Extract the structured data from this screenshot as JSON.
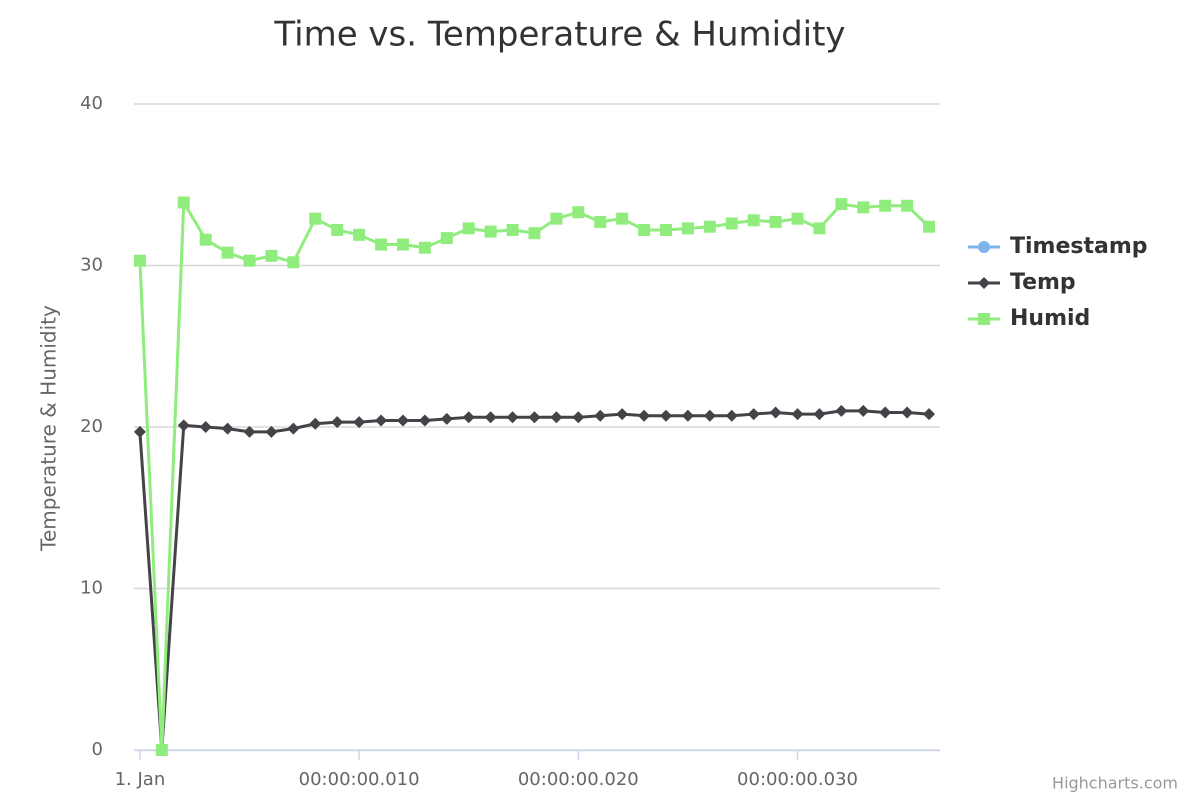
{
  "chart_data": {
    "type": "line",
    "title": "Time vs. Temperature & Humidity",
    "y_label": "Temperature & Humidity",
    "credit": "Highcharts.com",
    "x": [
      0,
      1,
      2,
      3,
      4,
      5,
      6,
      7,
      8,
      9,
      10,
      11,
      12,
      13,
      14,
      15,
      16,
      17,
      18,
      19,
      20,
      21,
      22,
      23,
      24,
      25,
      26,
      27,
      28,
      29,
      30,
      31,
      32,
      33,
      34,
      35,
      36
    ],
    "series": [
      {
        "name": "Timestamp",
        "color": "#7cb5ec",
        "marker": "circle",
        "values": [
          null,
          null,
          null,
          null,
          null,
          null,
          null,
          null,
          null,
          null,
          null,
          null,
          null,
          null,
          null,
          null,
          null,
          null,
          null,
          null,
          null,
          null,
          null,
          null,
          null,
          null,
          null,
          null,
          null,
          null,
          null,
          null,
          null,
          null,
          null,
          null,
          null
        ]
      },
      {
        "name": "Temp",
        "color": "#434348",
        "marker": "diamond",
        "values": [
          19.7,
          0,
          20.1,
          20.0,
          19.9,
          19.7,
          19.7,
          19.9,
          20.2,
          20.3,
          20.3,
          20.4,
          20.4,
          20.4,
          20.5,
          20.6,
          20.6,
          20.6,
          20.6,
          20.6,
          20.6,
          20.7,
          20.8,
          20.7,
          20.7,
          20.7,
          20.7,
          20.7,
          20.8,
          20.9,
          20.8,
          20.8,
          21.0,
          21.0,
          20.9,
          20.9,
          20.8
        ]
      },
      {
        "name": "Humid",
        "color": "#90ed7d",
        "marker": "square",
        "values": [
          30.3,
          0,
          33.9,
          31.6,
          30.8,
          30.3,
          30.6,
          30.2,
          32.9,
          32.2,
          31.9,
          31.3,
          31.3,
          31.1,
          31.7,
          32.3,
          32.1,
          32.2,
          32.0,
          32.9,
          33.3,
          32.7,
          32.9,
          32.2,
          32.2,
          32.3,
          32.4,
          32.6,
          32.8,
          32.7,
          32.9,
          32.3,
          33.8,
          33.6,
          33.7,
          33.7,
          32.4
        ]
      }
    ],
    "xlim": [
      -0.27,
      36.5
    ],
    "xticks": [
      {
        "value": 0,
        "label": "1. Jan"
      },
      {
        "value": 10,
        "label": "00:00:00.010"
      },
      {
        "value": 20,
        "label": "00:00:00.020"
      },
      {
        "value": 30,
        "label": "00:00:00.030"
      }
    ],
    "ylim": [
      0,
      40
    ],
    "yticks": [
      0,
      10,
      20,
      30,
      40
    ],
    "grid": true,
    "legend": "right"
  }
}
